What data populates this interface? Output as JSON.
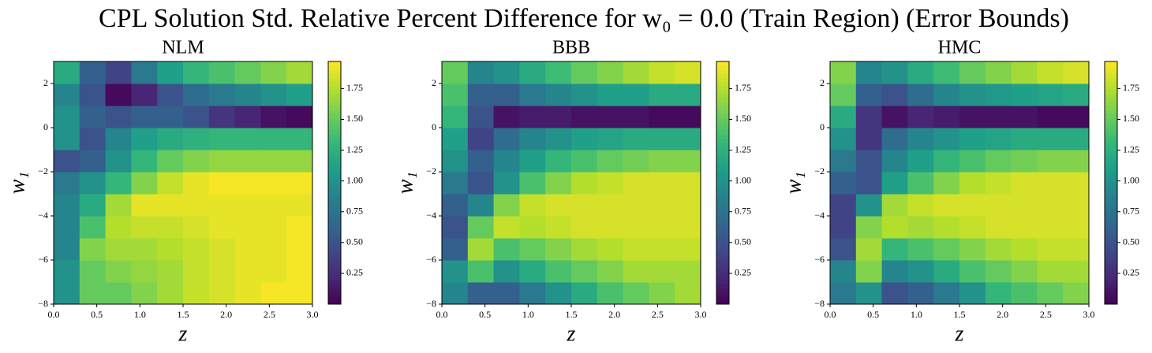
{
  "title": "CPL Solution Std. Relative Percent Difference for w₀ = 0.0 (Train Region) (Error Bounds)",
  "chart_data": [
    {
      "type": "heatmap",
      "title": "NLM",
      "xlabel": "z",
      "ylabel": "w₁",
      "colormap": "viridis",
      "xbins": [
        0,
        0.3,
        0.6,
        0.9,
        1.2,
        1.5,
        1.8,
        2.1,
        2.4,
        2.7,
        3
      ],
      "ybins": [
        -8,
        -7,
        -6,
        -5,
        -4,
        -3,
        -2,
        -1,
        0,
        1,
        2,
        3
      ],
      "values": [
        [
          1.0,
          1.5,
          1.5,
          1.6,
          1.7,
          1.8,
          1.85,
          1.9,
          1.95,
          1.95
        ],
        [
          1.0,
          1.5,
          1.6,
          1.65,
          1.7,
          1.8,
          1.85,
          1.9,
          1.9,
          1.95
        ],
        [
          0.9,
          1.6,
          1.7,
          1.7,
          1.75,
          1.8,
          1.85,
          1.9,
          1.9,
          1.95
        ],
        [
          0.9,
          1.4,
          1.75,
          1.8,
          1.8,
          1.85,
          1.9,
          1.9,
          1.9,
          1.95
        ],
        [
          0.9,
          1.2,
          1.7,
          1.9,
          1.9,
          1.9,
          1.9,
          1.9,
          1.9,
          1.9
        ],
        [
          0.8,
          1.0,
          1.3,
          1.6,
          1.8,
          1.9,
          1.95,
          1.95,
          1.95,
          1.95
        ],
        [
          0.5,
          0.6,
          1.0,
          1.3,
          1.5,
          1.6,
          1.65,
          1.65,
          1.65,
          1.65
        ],
        [
          1.0,
          0.5,
          0.9,
          1.1,
          1.2,
          1.25,
          1.3,
          1.3,
          1.3,
          1.3
        ],
        [
          1.0,
          0.6,
          0.5,
          0.6,
          0.6,
          0.5,
          0.3,
          0.2,
          0.1,
          0.05
        ],
        [
          0.9,
          0.5,
          0.05,
          0.2,
          0.5,
          0.7,
          0.8,
          0.9,
          1.0,
          1.1
        ],
        [
          1.2,
          0.6,
          0.4,
          0.8,
          1.1,
          1.3,
          1.4,
          1.5,
          1.6,
          1.7
        ]
      ],
      "xlim": [
        0,
        3
      ],
      "ylim": [
        -8,
        3
      ],
      "xticks": [
        {
          "value": 0,
          "label": "0.0"
        },
        {
          "value": 0.5,
          "label": "0.5"
        },
        {
          "value": 1,
          "label": "1.0"
        },
        {
          "value": 1.5,
          "label": "1.5"
        },
        {
          "value": 2,
          "label": "2.0"
        },
        {
          "value": 2.5,
          "label": "2.5"
        },
        {
          "value": 3,
          "label": "3.0"
        }
      ],
      "yticks": [
        {
          "value": -8,
          "label": "−8"
        },
        {
          "value": -6,
          "label": "−6"
        },
        {
          "value": -4,
          "label": "−4"
        },
        {
          "value": -2,
          "label": "−2"
        },
        0,
        2
      ],
      "clim": [
        0,
        1.97
      ],
      "cticks": [
        {
          "value": 0.25,
          "label": "0.25"
        },
        {
          "value": 0.5,
          "label": "0.50"
        },
        {
          "value": 0.75,
          "label": "0.75"
        },
        {
          "value": 1,
          "label": "1.00"
        },
        {
          "value": 1.25,
          "label": "1.25"
        },
        {
          "value": 1.5,
          "label": "1.50"
        },
        {
          "value": 1.75,
          "label": "1.75"
        }
      ]
    },
    {
      "type": "heatmap",
      "title": "BBB",
      "xlabel": "z",
      "ylabel": "w₁",
      "colormap": "viridis",
      "xbins": [
        0,
        0.3,
        0.6,
        0.9,
        1.2,
        1.5,
        1.8,
        2.1,
        2.4,
        2.7,
        3
      ],
      "ybins": [
        -8,
        -7,
        -6,
        -5,
        -4,
        -3,
        -2,
        -1,
        0,
        1,
        2,
        3
      ],
      "values": [
        [
          0.9,
          0.6,
          0.6,
          0.8,
          1.0,
          1.2,
          1.4,
          1.5,
          1.6,
          1.7
        ],
        [
          1.0,
          1.4,
          1.0,
          1.2,
          1.4,
          1.5,
          1.6,
          1.7,
          1.7,
          1.7
        ],
        [
          0.6,
          1.7,
          1.4,
          1.5,
          1.6,
          1.7,
          1.75,
          1.8,
          1.8,
          1.8
        ],
        [
          0.5,
          1.5,
          1.8,
          1.75,
          1.8,
          1.85,
          1.85,
          1.85,
          1.85,
          1.85
        ],
        [
          0.6,
          0.9,
          1.6,
          1.8,
          1.85,
          1.85,
          1.85,
          1.85,
          1.85,
          1.85
        ],
        [
          0.8,
          0.5,
          1.0,
          1.4,
          1.6,
          1.75,
          1.8,
          1.85,
          1.85,
          1.85
        ],
        [
          1.0,
          0.6,
          0.9,
          1.1,
          1.3,
          1.4,
          1.5,
          1.55,
          1.6,
          1.6
        ],
        [
          1.1,
          0.4,
          0.7,
          0.9,
          1.0,
          1.1,
          1.15,
          1.2,
          1.2,
          1.2
        ],
        [
          1.3,
          0.5,
          0.1,
          0.15,
          0.15,
          0.1,
          0.1,
          0.1,
          0.05,
          0.05
        ],
        [
          1.4,
          0.6,
          0.6,
          0.8,
          0.9,
          1.0,
          1.1,
          1.1,
          1.2,
          1.2
        ],
        [
          1.5,
          0.9,
          1.0,
          1.2,
          1.35,
          1.5,
          1.6,
          1.7,
          1.8,
          1.85
        ]
      ],
      "xlim": [
        0,
        3
      ],
      "ylim": [
        -8,
        3
      ],
      "xticks": [
        {
          "value": 0,
          "label": "0.0"
        },
        {
          "value": 0.5,
          "label": "0.5"
        },
        {
          "value": 1,
          "label": "1.0"
        },
        {
          "value": 1.5,
          "label": "1.5"
        },
        {
          "value": 2,
          "label": "2.0"
        },
        {
          "value": 2.5,
          "label": "2.5"
        },
        {
          "value": 3,
          "label": "3.0"
        }
      ],
      "yticks": [
        {
          "value": -8,
          "label": "−8"
        },
        {
          "value": -6,
          "label": "−6"
        },
        {
          "value": -4,
          "label": "−4"
        },
        {
          "value": -2,
          "label": "−2"
        },
        0,
        2
      ],
      "clim": [
        0,
        1.97
      ],
      "cticks": [
        {
          "value": 0.25,
          "label": "0.25"
        },
        {
          "value": 0.5,
          "label": "0.50"
        },
        {
          "value": 0.75,
          "label": "0.75"
        },
        {
          "value": 1,
          "label": "1.00"
        },
        {
          "value": 1.25,
          "label": "1.25"
        },
        {
          "value": 1.5,
          "label": "1.50"
        },
        {
          "value": 1.75,
          "label": "1.75"
        }
      ]
    },
    {
      "type": "heatmap",
      "title": "HMC",
      "xlabel": "z",
      "ylabel": "w₁",
      "colormap": "viridis",
      "xbins": [
        0,
        0.3,
        0.6,
        0.9,
        1.2,
        1.5,
        1.8,
        2.1,
        2.4,
        2.7,
        3
      ],
      "ybins": [
        -8,
        -7,
        -6,
        -5,
        -4,
        -3,
        -2,
        -1,
        0,
        1,
        2,
        3
      ],
      "values": [
        [
          0.8,
          1.0,
          0.5,
          0.6,
          0.8,
          1.0,
          1.3,
          1.4,
          1.5,
          1.6
        ],
        [
          0.9,
          1.6,
          0.9,
          1.0,
          1.2,
          1.4,
          1.5,
          1.6,
          1.7,
          1.7
        ],
        [
          0.5,
          1.7,
          1.3,
          1.4,
          1.5,
          1.6,
          1.7,
          1.75,
          1.8,
          1.8
        ],
        [
          0.4,
          1.6,
          1.75,
          1.7,
          1.75,
          1.8,
          1.85,
          1.85,
          1.85,
          1.85
        ],
        [
          0.4,
          1.0,
          1.7,
          1.8,
          1.85,
          1.85,
          1.85,
          1.85,
          1.85,
          1.85
        ],
        [
          0.6,
          0.5,
          1.1,
          1.4,
          1.6,
          1.75,
          1.8,
          1.85,
          1.85,
          1.85
        ],
        [
          0.8,
          0.5,
          0.9,
          1.1,
          1.3,
          1.4,
          1.5,
          1.55,
          1.6,
          1.6
        ],
        [
          1.0,
          0.3,
          0.7,
          0.9,
          1.0,
          1.1,
          1.15,
          1.2,
          1.2,
          1.2
        ],
        [
          1.2,
          0.3,
          0.1,
          0.2,
          0.15,
          0.1,
          0.1,
          0.1,
          0.05,
          0.05
        ],
        [
          1.5,
          0.6,
          0.5,
          0.7,
          0.9,
          1.0,
          1.05,
          1.1,
          1.15,
          1.2
        ],
        [
          1.6,
          0.9,
          1.0,
          1.2,
          1.35,
          1.5,
          1.6,
          1.7,
          1.8,
          1.85
        ]
      ],
      "xlim": [
        0,
        3
      ],
      "ylim": [
        -8,
        3
      ],
      "xticks": [
        {
          "value": 0,
          "label": "0.0"
        },
        {
          "value": 0.5,
          "label": "0.5"
        },
        {
          "value": 1,
          "label": "1.0"
        },
        {
          "value": 1.5,
          "label": "1.5"
        },
        {
          "value": 2,
          "label": "2.0"
        },
        {
          "value": 2.5,
          "label": "2.5"
        },
        {
          "value": 3,
          "label": "3.0"
        }
      ],
      "yticks": [
        {
          "value": -8,
          "label": "−8"
        },
        {
          "value": -6,
          "label": "−6"
        },
        {
          "value": -4,
          "label": "−4"
        },
        {
          "value": -2,
          "label": "−2"
        },
        0,
        2
      ],
      "clim": [
        0,
        1.97
      ],
      "cticks": [
        {
          "value": 0.25,
          "label": "0.25"
        },
        {
          "value": 0.5,
          "label": "0.50"
        },
        {
          "value": 0.75,
          "label": "0.75"
        },
        {
          "value": 1,
          "label": "1.00"
        },
        {
          "value": 1.25,
          "label": "1.25"
        },
        {
          "value": 1.5,
          "label": "1.50"
        },
        {
          "value": 1.75,
          "label": "1.75"
        }
      ]
    }
  ]
}
